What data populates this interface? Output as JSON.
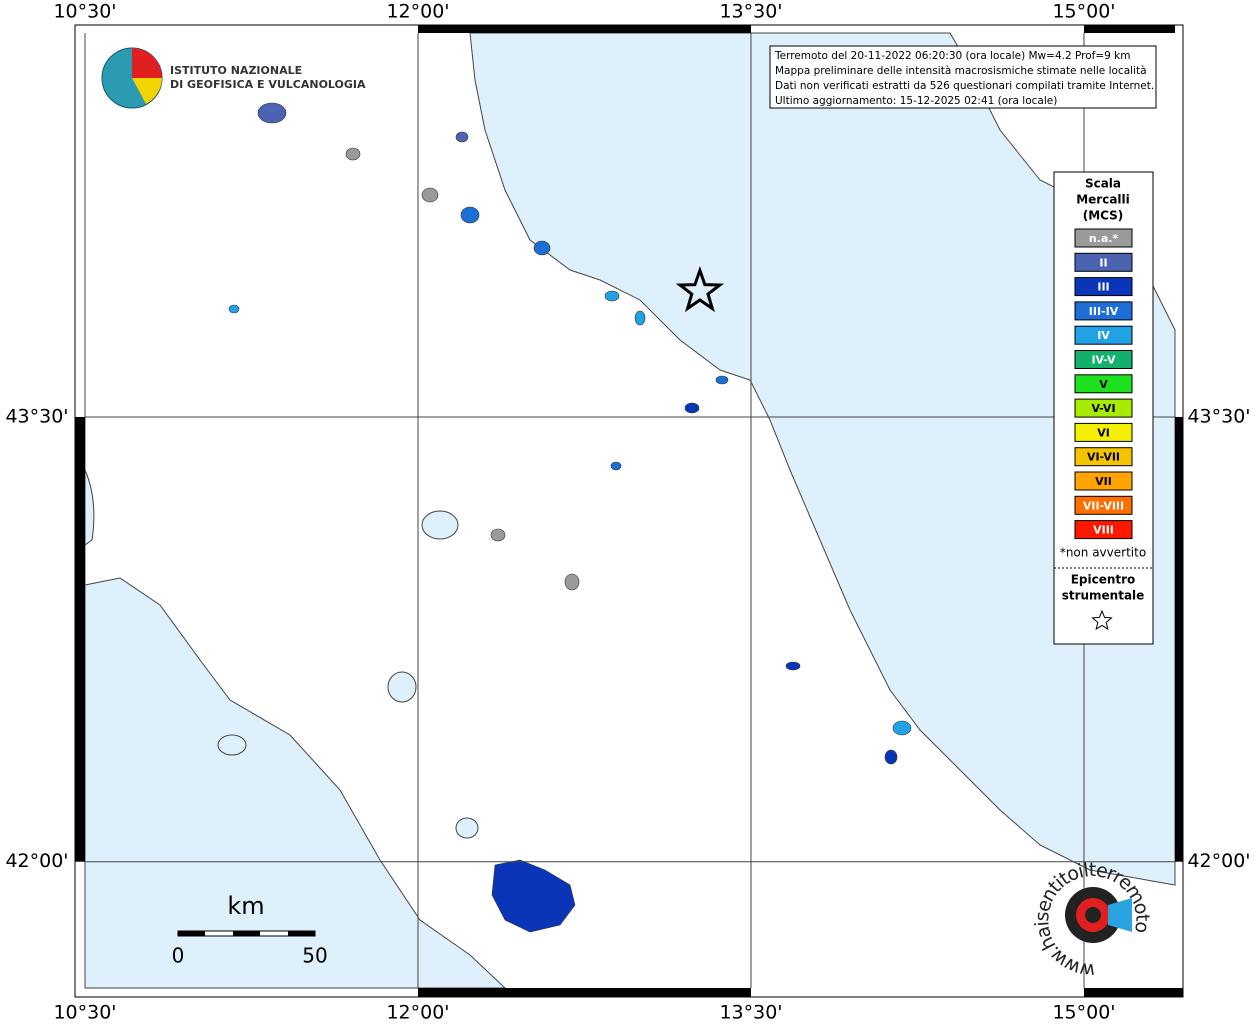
{
  "map": {
    "lonlim": [
      10.5,
      15.41
    ],
    "latlim": [
      41.574,
      44.795
    ],
    "lon_ticks": [
      {
        "value": 10.5,
        "label": "10°30'"
      },
      {
        "value": 12.0,
        "label": "12°00'"
      },
      {
        "value": 13.5,
        "label": "13°30'"
      },
      {
        "value": 15.0,
        "label": "15°00'"
      }
    ],
    "lat_ticks": [
      {
        "value": 43.5,
        "label": "43°30'"
      },
      {
        "value": 42.0,
        "label": "42°00'"
      }
    ],
    "epicenter": {
      "lon": 13.27,
      "lat": 43.93
    },
    "info": [
      "Terremoto del 20-11-2022 06:20:30 (ora locale) Mw=4.2 Prof=9 km",
      "Mappa preliminare delle intensità macrosismiche stimate nelle località",
      "Dati non verificati estratti da 526 questionari compilati tramite Internet.",
      "Ultimo aggiornamento: 15-12-2025 02:41 (ora locale)"
    ],
    "logo": [
      "ISTITUTO NAZIONALE",
      "DI GEOFISICA E VULCANOLOGIA"
    ],
    "scale": {
      "unit": "km",
      "start": 0,
      "end": 50
    },
    "watermark": "www.haisentitoilterremoto.it"
  },
  "legend": {
    "title": [
      "Scala",
      "Mercalli",
      "(MCS)"
    ],
    "items": [
      {
        "label": "n.a.*",
        "color": "#9a9a9a"
      },
      {
        "label": "II",
        "color": "#4b63b0"
      },
      {
        "label": "III",
        "color": "#0a35b8"
      },
      {
        "label": "III-IV",
        "color": "#1c6fd6"
      },
      {
        "label": "IV",
        "color": "#22a2e6"
      },
      {
        "label": "IV-V",
        "color": "#12b06a"
      },
      {
        "label": "V",
        "color": "#1fe01f"
      },
      {
        "label": "V-VI",
        "color": "#a6ec00"
      },
      {
        "label": "VI",
        "color": "#f4f000"
      },
      {
        "label": "VI-VII",
        "color": "#f5c400"
      },
      {
        "label": "VII",
        "color": "#ffa400"
      },
      {
        "label": "VII-VIII",
        "color": "#ff6e00"
      },
      {
        "label": "VIII",
        "color": "#ff1800"
      }
    ],
    "note": "*non avvertito",
    "epicenter_label": [
      "Epicentro",
      "strumentale"
    ]
  }
}
